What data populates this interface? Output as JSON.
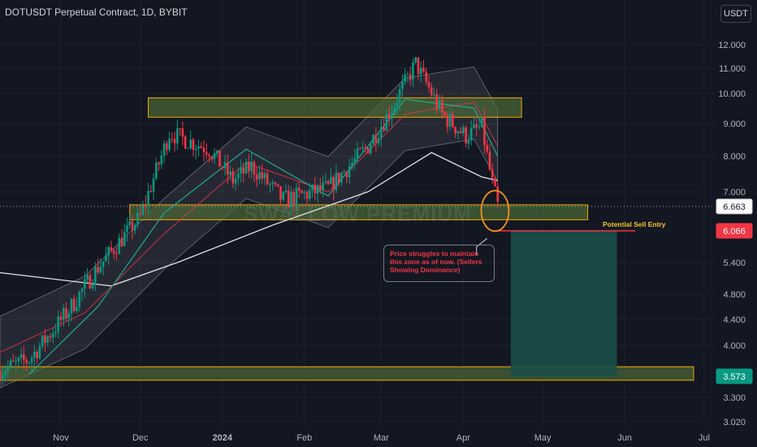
{
  "header": {
    "title": "DOTUSDT Perpetual Contract, 1D, BYBIT",
    "currency": "USDT"
  },
  "watermark": "SWALLOW PREMIUM",
  "annotations": {
    "callout": "Price struggles to maintain this zone as of now. (Sellers Showing Dominance)",
    "sell_entry": "Potential Sell Entry"
  },
  "colors": {
    "background": "#131722",
    "up": "#089981",
    "down": "#f23645",
    "zone_fill": "#4f6f3a",
    "zone_border": "#f7a600",
    "position_fill": "#1a4f48",
    "last_price_label": "#f23645",
    "target_label": "#089981"
  },
  "chart_data": {
    "type": "candlestick",
    "scale": "log",
    "symbol": "DOTUSDT",
    "interval": "1D",
    "exchange": "BYBIT",
    "x_axis": {
      "ticks": [
        "Nov",
        "Dec",
        "2024",
        "Feb",
        "Mar",
        "Apr",
        "May",
        "Jun",
        "Jul"
      ],
      "range": [
        "2023-10-09",
        "2024-07-05"
      ]
    },
    "y_axis": {
      "ticks": [
        "12.000",
        "11.000",
        "10.000",
        "9.000",
        "8.000",
        "7.000",
        "5.400",
        "4.800",
        "4.400",
        "4.000",
        "3.300",
        "3.020"
      ],
      "range": [
        2.95,
        13.0
      ]
    },
    "price_labels": {
      "current": "6.663",
      "entry": "6.066",
      "target": "3.573"
    },
    "series": [
      {
        "name": "price",
        "kind": "candlestick",
        "x": [
          "2023-10-09",
          "2023-10-20",
          "2023-11-05",
          "2023-11-15",
          "2023-12-01",
          "2023-12-12",
          "2023-12-27",
          "2024-01-05",
          "2024-01-12",
          "2024-01-24",
          "2024-02-10",
          "2024-02-25",
          "2024-03-05",
          "2024-03-14",
          "2024-03-24",
          "2024-04-02",
          "2024-04-08",
          "2024-04-12",
          "2024-04-14"
        ],
        "values": [
          3.65,
          3.8,
          4.6,
          5.3,
          6.4,
          8.7,
          8.2,
          7.3,
          7.7,
          6.8,
          7.1,
          8.3,
          9.5,
          11.2,
          9.3,
          8.6,
          8.9,
          7.2,
          6.663
        ]
      },
      {
        "kind": "moving_average",
        "x": [
          "2023-10-09",
          "2023-11-20",
          "2023-12-15",
          "2024-01-20",
          "2024-02-25",
          "2024-03-20",
          "2024-04-08",
          "2024-04-14"
        ],
        "values": [
          5.2,
          4.95,
          5.4,
          6.2,
          7.0,
          8.1,
          7.4,
          7.3
        ]
      },
      {
        "kind": "moving_average",
        "x": [
          "2023-10-09",
          "2023-11-10",
          "2023-12-10",
          "2024-01-10",
          "2024-02-10",
          "2024-03-10",
          "2024-04-05",
          "2024-04-14"
        ],
        "values": [
          3.9,
          4.5,
          6.0,
          7.8,
          7.0,
          9.3,
          9.7,
          8.3
        ]
      },
      {
        "kind": "moving_average",
        "x": [
          "2023-10-20",
          "2023-11-15",
          "2023-12-10",
          "2024-01-10",
          "2024-02-10",
          "2024-03-10",
          "2024-04-05",
          "2024-04-14"
        ],
        "values": [
          3.6,
          4.6,
          6.5,
          8.2,
          6.9,
          9.8,
          9.5,
          8.0
        ]
      }
    ],
    "zones": [
      {
        "x": [
          "2023-12-04",
          "2024-04-23"
        ],
        "y": [
          9.2,
          9.85
        ]
      },
      {
        "x": [
          "2023-11-27",
          "2024-05-18"
        ],
        "y": [
          6.33,
          6.7
        ]
      },
      {
        "x": [
          "2023-10-09",
          "2024-06-27"
        ],
        "y": [
          3.52,
          3.7
        ]
      }
    ],
    "short_position": {
      "x": [
        "2024-04-19",
        "2024-05-29"
      ],
      "entry": 6.066,
      "target": 3.573
    }
  }
}
